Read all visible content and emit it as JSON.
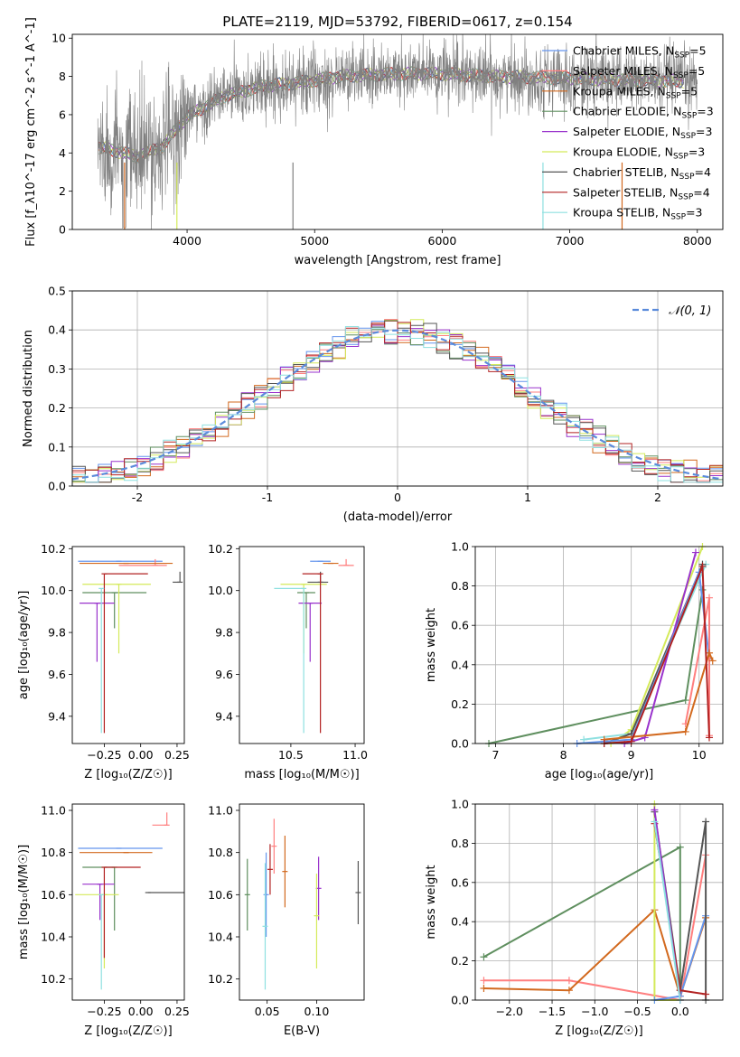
{
  "title": "PLATE=2119, MJD=53792, FIBERID=0617, z=0.154",
  "models": [
    {
      "name": "Chabrier MILES, N",
      "sub": "SSP",
      "suffix": "=5",
      "color": "#6495ed"
    },
    {
      "name": "Salpeter MILES, N",
      "sub": "SSP",
      "suffix": "=5",
      "color": "#ff7f7f"
    },
    {
      "name": "Kroupa MILES, N",
      "sub": "SSP",
      "suffix": "=5",
      "color": "#d2691e"
    },
    {
      "name": "Chabrier ELODIE, N",
      "sub": "SSP",
      "suffix": "=3",
      "color": "#5f8f5f"
    },
    {
      "name": "Salpeter ELODIE, N",
      "sub": "SSP",
      "suffix": "=3",
      "color": "#9932cc"
    },
    {
      "name": "Kroupa ELODIE, N",
      "sub": "SSP",
      "suffix": "=3",
      "color": "#d4ea5a"
    },
    {
      "name": "Chabrier STELIB, N",
      "sub": "SSP",
      "suffix": "=4",
      "color": "#555555"
    },
    {
      "name": "Salpeter STELIB, N",
      "sub": "SSP",
      "suffix": "=4",
      "color": "#b22222"
    },
    {
      "name": "Kroupa STELIB, N",
      "sub": "SSP",
      "suffix": "=3",
      "color": "#8ee0e0"
    }
  ],
  "chart_data": [
    {
      "id": "spectrum",
      "type": "line",
      "xlabel": "wavelength [Angstrom, rest frame]",
      "ylabel": "Flux [f_λ10^-17 erg cm^-2 s^-1 A^-1]",
      "xlim": [
        3100,
        8200
      ],
      "ylim": [
        0,
        10.2
      ],
      "xticks": [
        4000,
        5000,
        6000,
        7000,
        8000
      ],
      "yticks": [
        0,
        2,
        4,
        6,
        8,
        10
      ],
      "data_color": "#808080",
      "continuum": {
        "x": [
          3300,
          3450,
          3600,
          3800,
          4000,
          4300,
          4600,
          4900,
          5200,
          5500,
          5800,
          6100,
          6400,
          6700,
          7000,
          7300,
          7600,
          7900
        ],
        "y": [
          4.3,
          4.1,
          3.8,
          4.3,
          5.9,
          7.0,
          7.5,
          7.7,
          8.0,
          8.1,
          8.15,
          8.1,
          8.0,
          7.95,
          7.9,
          7.85,
          7.8,
          7.75
        ]
      },
      "legend_placement": "upper right"
    },
    {
      "id": "residuals",
      "type": "step",
      "xlabel": "(data-model)/error",
      "ylabel": "Normed distribution",
      "xlim": [
        -2.5,
        2.5
      ],
      "ylim": [
        0,
        0.5
      ],
      "xticks": [
        -2,
        -1,
        0,
        1,
        2
      ],
      "yticks": [
        0.0,
        0.1,
        0.2,
        0.3,
        0.4,
        0.5
      ],
      "gaussian_label": "𝒩(0, 1)",
      "gaussian_color": "#5b8bdb",
      "grid": true,
      "legend_placement": "upper right"
    },
    {
      "id": "age_vs_Z",
      "type": "errorbar",
      "xlabel": "Z [log₁₀(Z/Z☉)]",
      "ylabel": "age  [log₁₀(age/yr)]",
      "xlim": [
        -0.47,
        0.3
      ],
      "ylim": [
        9.27,
        10.21
      ],
      "xticks": [
        -0.25,
        0.0,
        0.25
      ],
      "xticklabels": [
        "−0.25",
        "0.00",
        "0.25"
      ],
      "yticks": [
        9.4,
        9.6,
        9.8,
        10.0,
        10.2
      ],
      "points": [
        {
          "m": 0,
          "x": -0.15,
          "xerr": [
            0.28,
            0.3
          ],
          "y": 10.14,
          "yerr": [
            0.0,
            0.0
          ]
        },
        {
          "m": 1,
          "x": 0.1,
          "xerr": [
            0.25,
            0.08
          ],
          "y": 10.12,
          "yerr": [
            0.0,
            0.03
          ]
        },
        {
          "m": 2,
          "x": -0.1,
          "xerr": [
            0.32,
            0.32
          ],
          "y": 10.13,
          "yerr": [
            0.0,
            0.0
          ]
        },
        {
          "m": 3,
          "x": -0.18,
          "xerr": [
            0.22,
            0.22
          ],
          "y": 9.99,
          "yerr": [
            0.17,
            0.0
          ]
        },
        {
          "m": 4,
          "x": -0.3,
          "xerr": [
            0.12,
            0.12
          ],
          "y": 9.94,
          "yerr": [
            0.28,
            0.0
          ]
        },
        {
          "m": 5,
          "x": -0.15,
          "xerr": [
            0.25,
            0.22
          ],
          "y": 10.03,
          "yerr": [
            0.33,
            0.0
          ]
        },
        {
          "m": 6,
          "x": 0.27,
          "xerr": [
            0.05,
            0.0
          ],
          "y": 10.04,
          "yerr": [
            0.0,
            0.05
          ]
        },
        {
          "m": 7,
          "x": -0.25,
          "xerr": [
            0.0,
            0.3
          ],
          "y": 10.08,
          "yerr": [
            0.76,
            0.0
          ]
        },
        {
          "m": 8,
          "x": -0.27,
          "xerr": [
            0.0,
            0.0
          ],
          "y": 10.01,
          "yerr": [
            0.69,
            0.0
          ]
        }
      ]
    },
    {
      "id": "age_vs_mass",
      "type": "errorbar",
      "xlabel": "mass [log₁₀(M/M☉)]",
      "ylabel": "",
      "xlim": [
        10.1,
        11.07
      ],
      "ylim": [
        9.27,
        10.21
      ],
      "xticks": [
        10.5,
        11.0
      ],
      "xticklabels": [
        "10.5",
        "11.0"
      ],
      "yticks": [
        9.4,
        9.6,
        9.8,
        10.0,
        10.2
      ],
      "points": [
        {
          "m": 0,
          "x": 10.73,
          "xerr": [
            0.08,
            0.08
          ],
          "y": 10.14,
          "yerr": [
            0.0,
            0.0
          ]
        },
        {
          "m": 1,
          "x": 10.93,
          "xerr": [
            0.06,
            0.06
          ],
          "y": 10.12,
          "yerr": [
            0.0,
            0.03
          ]
        },
        {
          "m": 2,
          "x": 10.81,
          "xerr": [
            0.06,
            0.06
          ],
          "y": 10.13,
          "yerr": [
            0.0,
            0.0
          ]
        },
        {
          "m": 3,
          "x": 10.62,
          "xerr": [
            0.07,
            0.07
          ],
          "y": 9.99,
          "yerr": [
            0.17,
            0.0
          ]
        },
        {
          "m": 4,
          "x": 10.65,
          "xerr": [
            0.09,
            0.09
          ],
          "y": 9.94,
          "yerr": [
            0.28,
            0.0
          ]
        },
        {
          "m": 5,
          "x": 10.6,
          "xerr": [
            0.18,
            0.18
          ],
          "y": 10.03,
          "yerr": [
            0.33,
            0.0
          ]
        },
        {
          "m": 6,
          "x": 10.73,
          "xerr": [
            0.1,
            0.06
          ],
          "y": 10.04,
          "yerr": [
            0.0,
            0.05
          ]
        },
        {
          "m": 7,
          "x": 10.73,
          "xerr": [
            0.14,
            0.0
          ],
          "y": 10.08,
          "yerr": [
            0.76,
            0.0
          ]
        },
        {
          "m": 8,
          "x": 10.6,
          "xerr": [
            0.23,
            0.0
          ],
          "y": 10.01,
          "yerr": [
            0.69,
            0.0
          ]
        }
      ]
    },
    {
      "id": "weight_vs_age",
      "type": "line",
      "xlabel": "age  [log₁₀(age/yr)]",
      "ylabel": "mass weight",
      "xlim": [
        6.7,
        10.35
      ],
      "ylim": [
        0,
        1
      ],
      "xticks": [
        7,
        8,
        9,
        10
      ],
      "yticks": [
        0.0,
        0.2,
        0.4,
        0.6,
        0.8,
        1.0
      ],
      "grid": true,
      "series": [
        {
          "m": 3,
          "x": [
            6.9,
            9.8,
            10.05
          ],
          "y": [
            0.0,
            0.22,
            0.78
          ]
        },
        {
          "m": 5,
          "x": [
            8.7,
            9.0,
            10.05
          ],
          "y": [
            0.0,
            0.07,
            1.0
          ]
        },
        {
          "m": 8,
          "x": [
            8.3,
            9.0,
            10.1
          ],
          "y": [
            0.02,
            0.05,
            0.91
          ]
        },
        {
          "m": 6,
          "x": [
            8.6,
            9.0,
            10.05
          ],
          "y": [
            0.0,
            0.05,
            0.91
          ]
        },
        {
          "m": 4,
          "x": [
            8.9,
            9.2,
            9.95
          ],
          "y": [
            0.0,
            0.03,
            0.97
          ]
        },
        {
          "m": 0,
          "x": [
            8.2,
            9.0,
            10.0,
            10.15
          ],
          "y": [
            0.0,
            0.02,
            0.87,
            0.43
          ]
        },
        {
          "m": 1,
          "x": [
            9.8,
            10.15,
            10.15
          ],
          "y": [
            0.1,
            0.74,
            0.04
          ]
        },
        {
          "m": 2,
          "x": [
            8.6,
            9.8,
            10.15,
            10.2
          ],
          "y": [
            0.02,
            0.06,
            0.46,
            0.42
          ]
        },
        {
          "m": 7,
          "x": [
            8.6,
            9.0,
            10.05,
            10.15
          ],
          "y": [
            0.0,
            0.01,
            0.9,
            0.03
          ]
        }
      ]
    },
    {
      "id": "mass_vs_Z",
      "type": "errorbar",
      "xlabel": "Z [log₁₀(Z/Z☉)]",
      "ylabel": "mass [log₁₀(M/M☉)]",
      "xlim": [
        -0.47,
        0.3
      ],
      "ylim": [
        10.1,
        11.03
      ],
      "xticks": [
        -0.25,
        0.0,
        0.25
      ],
      "xticklabels": [
        "−0.25",
        "0.00",
        "0.25"
      ],
      "yticks": [
        10.2,
        10.4,
        10.6,
        10.8,
        11.0
      ],
      "points": [
        {
          "m": 0,
          "x": -0.15,
          "xerr": [
            0.28,
            0.3
          ],
          "y": 10.82,
          "yerr": [
            0.0,
            0.0
          ]
        },
        {
          "m": 1,
          "x": 0.18,
          "xerr": [
            0.1,
            0.0
          ],
          "y": 10.93,
          "yerr": [
            0.0,
            0.06
          ]
        },
        {
          "m": 2,
          "x": -0.1,
          "xerr": [
            0.32,
            0.18
          ],
          "y": 10.8,
          "yerr": [
            0.0,
            0.0
          ]
        },
        {
          "m": 3,
          "x": -0.18,
          "xerr": [
            0.22,
            0.0
          ],
          "y": 10.73,
          "yerr": [
            0.3,
            0.0
          ]
        },
        {
          "m": 4,
          "x": -0.28,
          "xerr": [
            0.12,
            0.1
          ],
          "y": 10.65,
          "yerr": [
            0.17,
            0.0
          ]
        },
        {
          "m": 5,
          "x": -0.25,
          "xerr": [
            0.2,
            0.1
          ],
          "y": 10.6,
          "yerr": [
            0.35,
            0.0
          ]
        },
        {
          "m": 6,
          "x": 0.05,
          "xerr": [
            0.0,
            0.25
          ],
          "y": 10.61,
          "yerr": [
            0.0,
            0.0
          ]
        },
        {
          "m": 7,
          "x": -0.25,
          "xerr": [
            0.0,
            0.25
          ],
          "y": 10.73,
          "yerr": [
            0.43,
            0.0
          ]
        },
        {
          "m": 8,
          "x": -0.27,
          "xerr": [
            0.0,
            0.0
          ],
          "y": 10.6,
          "yerr": [
            0.45,
            0.0
          ]
        }
      ]
    },
    {
      "id": "mass_vs_EBV",
      "type": "errorbar",
      "xlabel": "E(B-V)",
      "ylabel": "",
      "xlim": [
        0.022,
        0.148
      ],
      "ylim": [
        10.1,
        11.03
      ],
      "xticks": [
        0.05,
        0.1
      ],
      "xticklabels": [
        "0.05",
        "0.10"
      ],
      "yticks": [
        10.2,
        10.4,
        10.6,
        10.8,
        11.0
      ],
      "points": [
        {
          "m": 0,
          "x": 0.049,
          "y": 10.6,
          "yerr": [
            0.2,
            0.2
          ]
        },
        {
          "m": 1,
          "x": 0.057,
          "y": 10.83,
          "yerr": [
            0.13,
            0.13
          ]
        },
        {
          "m": 2,
          "x": 0.068,
          "y": 10.71,
          "yerr": [
            0.17,
            0.17
          ]
        },
        {
          "m": 3,
          "x": 0.03,
          "y": 10.6,
          "yerr": [
            0.17,
            0.17
          ]
        },
        {
          "m": 4,
          "x": 0.102,
          "y": 10.63,
          "yerr": [
            0.15,
            0.15
          ]
        },
        {
          "m": 5,
          "x": 0.1,
          "y": 10.5,
          "yerr": [
            0.25,
            0.2
          ]
        },
        {
          "m": 6,
          "x": 0.142,
          "y": 10.61,
          "yerr": [
            0.15,
            0.15
          ]
        },
        {
          "m": 7,
          "x": 0.053,
          "y": 10.72,
          "yerr": [
            0.12,
            0.12
          ]
        },
        {
          "m": 8,
          "x": 0.048,
          "y": 10.45,
          "yerr": [
            0.3,
            0.3
          ]
        }
      ]
    },
    {
      "id": "weight_vs_Z",
      "type": "line",
      "xlabel": "Z [log₁₀(Z/Z☉)]",
      "ylabel": "mass weight",
      "xlim": [
        -2.4,
        0.5
      ],
      "ylim": [
        0,
        1
      ],
      "xticks": [
        -2.0,
        -1.5,
        -1.0,
        -0.5,
        0.0
      ],
      "xticklabels": [
        "−2.0",
        "−1.5",
        "−1.0",
        "−0.5",
        "0.0"
      ],
      "yticks": [
        0.0,
        0.2,
        0.4,
        0.6,
        0.8,
        1.0
      ],
      "grid": true,
      "series": [
        {
          "m": 3,
          "x": [
            -2.3,
            0.0,
            0.0
          ],
          "y": [
            0.22,
            0.78,
            0.0
          ]
        },
        {
          "m": 1,
          "x": [
            -2.3,
            -1.3,
            0.0,
            0.3
          ],
          "y": [
            0.1,
            0.1,
            0.0,
            0.74
          ]
        },
        {
          "m": 2,
          "x": [
            -2.3,
            -1.3,
            -0.3,
            0.0,
            0.3
          ],
          "y": [
            0.06,
            0.05,
            0.46,
            0.02,
            0.42
          ]
        },
        {
          "m": 5,
          "x": [
            -0.3,
            -0.3,
            0.0
          ],
          "y": [
            1.0,
            0.0,
            0.0
          ]
        },
        {
          "m": 0,
          "x": [
            -0.3,
            0.0,
            0.3
          ],
          "y": [
            0.0,
            0.02,
            0.43
          ]
        },
        {
          "m": 6,
          "x": [
            -0.3,
            0.0,
            0.3,
            0.3
          ],
          "y": [
            0.96,
            0.05,
            0.91,
            0.0
          ]
        },
        {
          "m": 7,
          "x": [
            -0.3,
            0.0,
            0.3
          ],
          "y": [
            0.9,
            0.05,
            0.03
          ]
        },
        {
          "m": 4,
          "x": [
            -0.3,
            0.0
          ],
          "y": [
            0.97,
            0.0
          ]
        },
        {
          "m": 8,
          "x": [
            -0.3,
            0.0
          ],
          "y": [
            0.91,
            0.0
          ]
        }
      ]
    }
  ]
}
